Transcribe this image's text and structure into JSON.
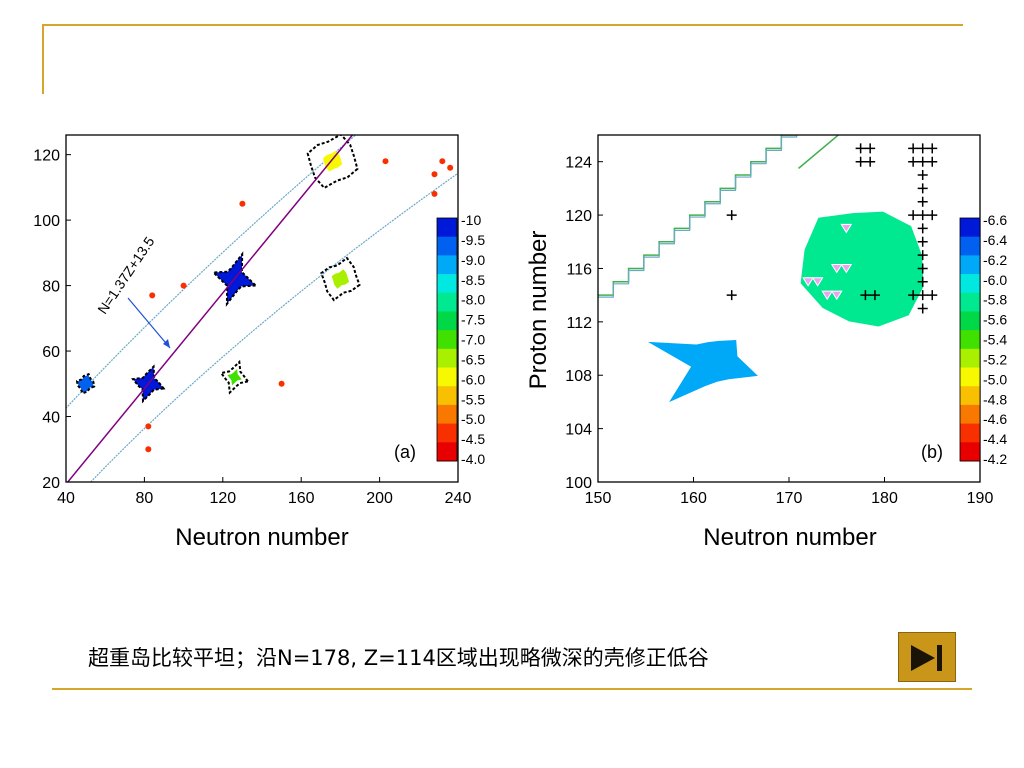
{
  "chart_data": [
    {
      "type": "heatmap",
      "panel_label": "(a)",
      "xlabel": "Neutron number",
      "ylabel": "",
      "xlim": [
        40,
        240
      ],
      "ylim": [
        20,
        126
      ],
      "xticks": [
        40,
        80,
        120,
        160,
        200,
        240
      ],
      "yticks": [
        20,
        40,
        60,
        80,
        100,
        120
      ],
      "colorbar": {
        "ticks": [
          "-10",
          "-9.5",
          "-9.0",
          "-8.5",
          "-8.0",
          "-7.5",
          "-7.0",
          "-6.5",
          "-6.0",
          "-5.5",
          "-5.0",
          "-4.5",
          "-4.0"
        ],
        "colors": [
          "#0018d8",
          "#0060f0",
          "#00a8f8",
          "#00e8e0",
          "#00e890",
          "#00d848",
          "#40e000",
          "#a8f000",
          "#f8f800",
          "#f8c000",
          "#f87800",
          "#f83000",
          "#e80000"
        ]
      },
      "annotation": "N=1.37Z+13.5",
      "line": {
        "slope_N_per_Z": 1.37,
        "intercept": 13.5
      },
      "islands": [
        {
          "N": 50,
          "Z": 50,
          "depth": -9.5
        },
        {
          "N": 82,
          "Z": 50,
          "depth": -10
        },
        {
          "N": 126,
          "Z": 82,
          "depth": -10
        },
        {
          "N": 126,
          "Z": 52,
          "depth": -7.0
        },
        {
          "N": 180,
          "Z": 82,
          "depth": -6.5
        },
        {
          "N": 176,
          "Z": 118,
          "depth": -6.0
        }
      ]
    },
    {
      "type": "heatmap",
      "panel_label": "(b)",
      "xlabel": "Neutron number",
      "ylabel": "Proton number",
      "xlim": [
        150,
        190
      ],
      "ylim": [
        100,
        126
      ],
      "xticks": [
        150,
        160,
        170,
        180,
        190
      ],
      "yticks": [
        100,
        104,
        108,
        112,
        116,
        120,
        124
      ],
      "colorbar": {
        "ticks": [
          "-6.6",
          "-6.4",
          "-6.2",
          "-6.0",
          "-5.8",
          "-5.6",
          "-5.4",
          "-5.2",
          "-5.0",
          "-4.8",
          "-4.6",
          "-4.4",
          "-4.2"
        ],
        "colors": [
          "#0018d8",
          "#0060f0",
          "#00a8f8",
          "#00e8e0",
          "#00e890",
          "#00d848",
          "#40e000",
          "#a8f000",
          "#f8f800",
          "#f8c000",
          "#f87800",
          "#f83000",
          "#e80000"
        ]
      },
      "islands": [
        {
          "N": 162,
          "Z": 109,
          "depth": -6.2
        },
        {
          "N": 178,
          "Z": 116,
          "depth": -5.8
        }
      ],
      "plus_markers": [
        [
          164,
          120
        ],
        [
          164,
          114
        ],
        [
          177.5,
          125
        ],
        [
          178.5,
          125
        ],
        [
          177.5,
          124
        ],
        [
          178.5,
          124
        ],
        [
          183,
          125
        ],
        [
          184,
          125
        ],
        [
          185,
          125
        ],
        [
          183,
          124
        ],
        [
          184,
          124
        ],
        [
          185,
          124
        ],
        [
          184,
          123
        ],
        [
          184,
          122
        ],
        [
          184,
          121
        ],
        [
          183,
          120
        ],
        [
          184,
          120
        ],
        [
          185,
          120
        ],
        [
          184,
          119
        ],
        [
          184,
          118
        ],
        [
          184,
          117
        ],
        [
          184,
          116
        ],
        [
          184,
          115
        ],
        [
          178,
          114
        ],
        [
          179,
          114
        ],
        [
          183,
          114
        ],
        [
          184,
          114
        ],
        [
          185,
          114
        ],
        [
          184,
          113
        ]
      ],
      "triangle_markers": [
        [
          176,
          119
        ],
        [
          175,
          116
        ],
        [
          176,
          116
        ],
        [
          172,
          115
        ],
        [
          173,
          115
        ],
        [
          174,
          114
        ],
        [
          175,
          114
        ]
      ]
    }
  ],
  "caption": "超重岛比较平坦；沿N=178, Z=114区域出现略微深的壳修正低谷",
  "colors": {
    "frame_line": "#d6a62a",
    "button_bg": "#c9961a"
  },
  "icons": {
    "next_button": "skip-next-icon"
  }
}
